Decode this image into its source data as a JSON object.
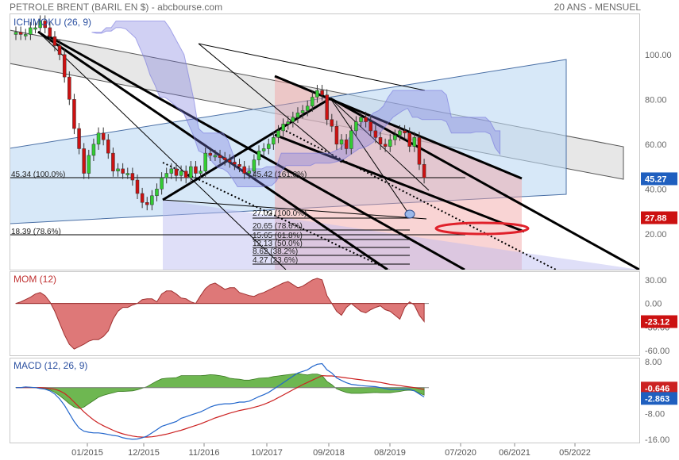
{
  "header": {
    "title": "PETROLE BRENT (BARIL EN $)",
    "separator": " - ",
    "source": "abcbourse.com",
    "period": "20 ANS - MENSUEL"
  },
  "colors": {
    "up": "#33cc33",
    "down": "#cc1111",
    "mom_fill": "#d86060",
    "macd_line": "#2266cc",
    "signal_line": "#cc2222",
    "hist_fill": "#55aa33",
    "cloud": "#7777dd",
    "price_badge": "#1f5fbf",
    "last_badge": "#cc1111"
  },
  "chart_data": [
    {
      "type": "candlestick",
      "panel": "price",
      "indicator_label": "ICHIMOKU (26, 9)",
      "y_ticks": [
        100,
        80,
        60,
        40,
        20
      ],
      "ylim": [
        4,
        118
      ],
      "x_tick_labels": [
        "01/2015",
        "12/2015",
        "11/2016",
        "10/2017",
        "09/2018",
        "08/2019",
        "07/2020",
        "06/2021",
        "05/2022"
      ],
      "badges": [
        {
          "value": "45.27",
          "kind": "price"
        },
        {
          "value": "27.88",
          "kind": "last"
        }
      ],
      "annotations": [
        "45.34 (100.0%)",
        "45.42 (161.8%)",
        "18.39 (78.6%)",
        "27.02 (100.0%)",
        "20.65 (78.6%)",
        "15.65 (61.8%)",
        "12.13 (50.0%)",
        "8.62 (38.2%)",
        "4.27 (23.6%)"
      ],
      "closes": [
        110,
        109,
        109,
        112,
        112,
        115,
        112,
        108,
        104,
        100,
        90,
        80,
        67,
        58,
        47,
        55,
        60,
        65,
        62,
        56,
        48,
        49,
        47,
        47,
        44,
        38,
        34,
        33,
        37,
        40,
        45,
        47,
        49,
        46,
        48,
        45,
        50,
        47,
        48,
        56,
        55,
        55,
        54,
        53,
        52,
        51,
        50,
        47,
        48,
        53,
        57,
        58,
        60,
        63,
        66,
        69,
        70,
        72,
        74,
        75,
        77,
        81,
        84,
        82,
        71,
        68,
        60,
        62,
        58,
        66,
        70,
        72,
        70,
        66,
        63,
        60,
        59,
        62,
        64,
        66,
        65,
        59,
        63,
        51,
        45
      ]
    },
    {
      "type": "area",
      "panel": "momentum",
      "indicator_label": "MOM (12)",
      "y_ticks": [
        30,
        0,
        -30,
        -60
      ],
      "ylim": [
        -66,
        40
      ],
      "badges": [
        {
          "value": "-23.12",
          "kind": "last"
        }
      ],
      "values": [
        0,
        2,
        5,
        8,
        12,
        14,
        10,
        2,
        -10,
        -25,
        -40,
        -52,
        -58,
        -55,
        -52,
        -48,
        -46,
        -46,
        -42,
        -35,
        -20,
        -10,
        -5,
        -5,
        -2,
        0,
        5,
        6,
        6,
        2,
        12,
        16,
        16,
        12,
        7,
        6,
        2,
        0,
        10,
        19,
        24,
        26,
        22,
        18,
        20,
        20,
        14,
        12,
        10,
        9,
        12,
        14,
        17,
        20,
        23,
        26,
        28,
        24,
        20,
        22,
        26,
        30,
        32,
        30,
        10,
        0,
        -10,
        -15,
        -5,
        0,
        -5,
        -10,
        -12,
        -8,
        -5,
        -3,
        -8,
        -10,
        -15,
        -20,
        -5,
        2,
        -2,
        -15,
        -23
      ]
    },
    {
      "type": "line",
      "panel": "macd",
      "indicator_label": "MACD (12, 26, 9)",
      "y_ticks": [
        8.0,
        0.0,
        -8.0,
        -16.0
      ],
      "ylim": [
        -17,
        9
      ],
      "badges": [
        {
          "value": "-0.646",
          "kind": "signal"
        },
        {
          "value": "-2.863",
          "kind": "macd"
        }
      ],
      "series": [
        {
          "values": [
            0.0,
            0.0,
            0.2,
            0.1,
            0.0,
            -0.3,
            -0.5,
            -1.0,
            -2.0,
            -3.5,
            -5.5,
            -8.0,
            -10.5,
            -12.5,
            -13.5,
            -13.8,
            -14.0,
            -14.0,
            -14.2,
            -14.5,
            -14.8,
            -15.0,
            -15.5,
            -15.8,
            -16.0,
            -15.9,
            -15.5,
            -15.0,
            -14.0,
            -13.0,
            -12.0,
            -11.5,
            -11.0,
            -10.5,
            -9.5,
            -9.0,
            -8.5,
            -8.0,
            -7.5,
            -6.8,
            -6.0,
            -5.5,
            -5.2,
            -5.0,
            -5.0,
            -4.8,
            -4.5,
            -4.5,
            -4.2,
            -3.5,
            -2.8,
            -2.2,
            -1.5,
            -0.5,
            0.5,
            1.5,
            2.5,
            3.5,
            4.5,
            5.0,
            5.5,
            6.5,
            7.2,
            7.4,
            5.5,
            4.5,
            3.0,
            2.2,
            1.5,
            1.0,
            0.8,
            0.6,
            0.5,
            0.4,
            0.3,
            0.0,
            -0.3,
            -0.6,
            -0.6,
            -0.6,
            -0.5,
            -0.6,
            -1.0,
            -2.0,
            -2.9
          ]
        },
        {
          "values": [
            0.0,
            0.0,
            0.0,
            0.0,
            0.0,
            0.0,
            -0.1,
            -0.3,
            -0.5,
            -1.0,
            -1.8,
            -3.0,
            -4.5,
            -6.0,
            -7.5,
            -8.8,
            -10.0,
            -11.0,
            -11.8,
            -12.5,
            -13.2,
            -13.8,
            -14.3,
            -14.7,
            -15.0,
            -15.2,
            -15.3,
            -15.3,
            -15.2,
            -15.0,
            -14.7,
            -14.4,
            -14.0,
            -13.6,
            -13.2,
            -12.7,
            -12.2,
            -11.7,
            -11.2,
            -10.6,
            -10.0,
            -9.4,
            -8.9,
            -8.4,
            -7.9,
            -7.5,
            -7.1,
            -6.8,
            -6.5,
            -6.1,
            -5.7,
            -5.2,
            -4.6,
            -3.9,
            -3.1,
            -2.3,
            -1.5,
            -0.7,
            0.1,
            0.9,
            1.6,
            2.3,
            3.0,
            3.7,
            3.6,
            3.6,
            3.4,
            3.2,
            3.0,
            2.8,
            2.6,
            2.4,
            2.2,
            2.0,
            1.8,
            1.6,
            1.3,
            1.0,
            0.8,
            0.6,
            0.4,
            0.2,
            0.0,
            -0.3,
            -0.6
          ]
        }
      ]
    }
  ]
}
